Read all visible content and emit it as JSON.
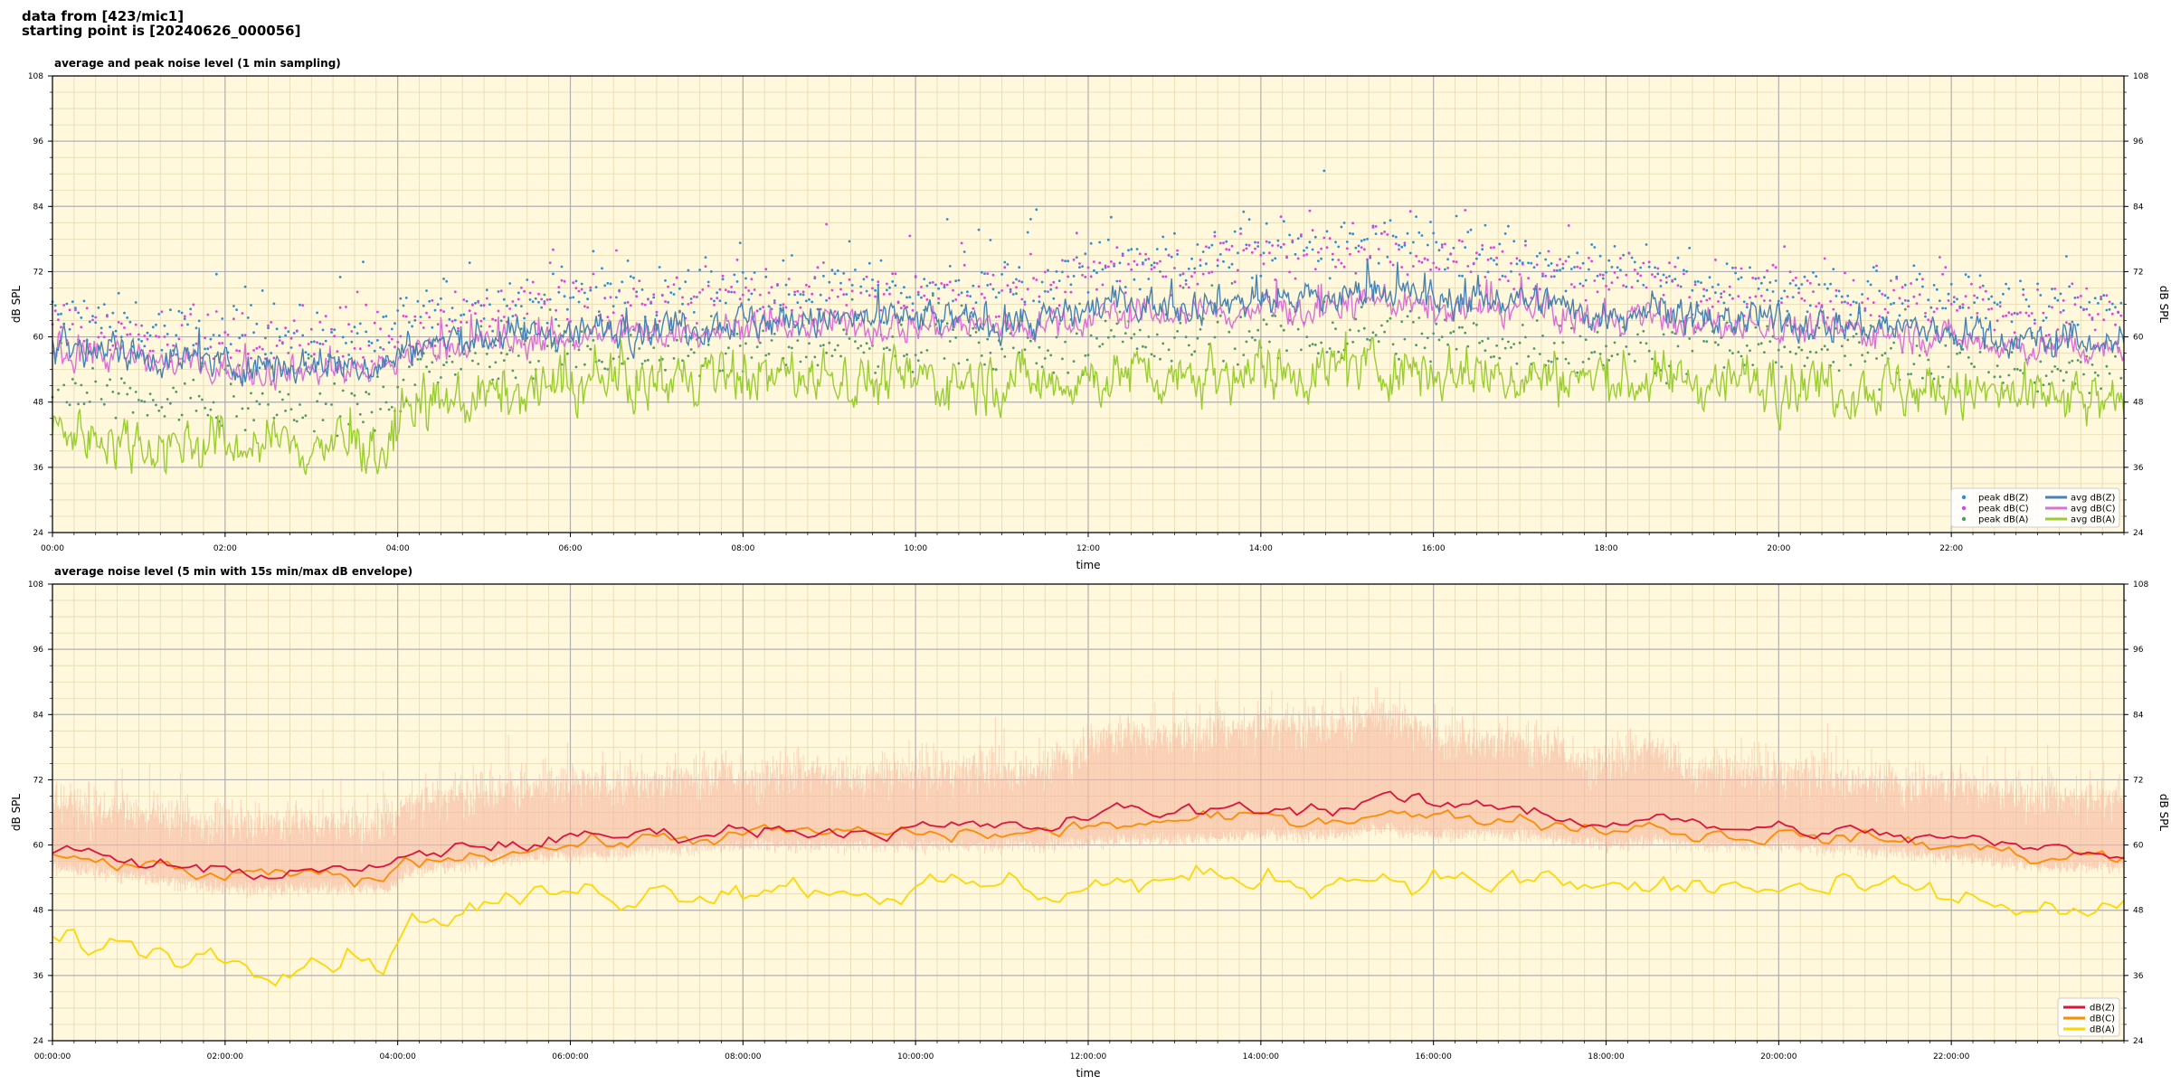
{
  "header": {
    "line1": "data from [423/mic1]",
    "line2": "starting point is [20240626_000056]"
  },
  "colors": {
    "background": "#fff8dc",
    "peak_z": "#2b8fd6",
    "peak_c": "#e040e0",
    "peak_a": "#4f9a6a",
    "avg_z": "#4682b4",
    "avg_c": "#da70d6",
    "avg_a": "#9acd32",
    "env": "#f5b8a0",
    "line_z": "#dc143c",
    "line_c": "#ff8c00",
    "line_a": "#ffd700"
  },
  "chart_data": [
    {
      "type": "line",
      "title": "average and peak noise level (1 min sampling)",
      "xlabel": "time",
      "ylabel": "dB SPL",
      "ylim": [
        24,
        108
      ],
      "xlim_hours": [
        0,
        24
      ],
      "yticks": [
        "24",
        "36",
        "48",
        "60",
        "72",
        "84",
        "96",
        "108"
      ],
      "xticks": [
        "00:00",
        "02:00",
        "04:00",
        "06:00",
        "08:00",
        "10:00",
        "12:00",
        "14:00",
        "16:00",
        "18:00",
        "20:00",
        "22:00"
      ],
      "grid": true,
      "legend_position": "lower-right",
      "legend": [
        "peak dB(Z)",
        "peak dB(C)",
        "peak dB(A)",
        "avg dB(Z)",
        "avg dB(C)",
        "avg dB(A)"
      ],
      "sampling_minutes": 1,
      "profile_hours": [
        0,
        0.5,
        1,
        2,
        3,
        3.9,
        4.1,
        5,
        6,
        8,
        10,
        11.5,
        12.2,
        13,
        14,
        15,
        15.3,
        16,
        17,
        18,
        18.6,
        19,
        20,
        21,
        22,
        23,
        24
      ],
      "series": [
        {
          "name": "avg dB(Z)",
          "values": [
            59,
            58,
            57,
            55,
            55,
            55,
            58,
            60,
            61,
            63,
            63,
            63,
            66,
            66,
            67,
            67,
            69,
            67,
            67,
            64,
            66,
            63,
            63,
            62,
            61,
            59,
            59
          ]
        },
        {
          "name": "avg dB(C)",
          "values": [
            58,
            57,
            56,
            54,
            54,
            54,
            57,
            59,
            60,
            62,
            62,
            62,
            64,
            64,
            65,
            65,
            67,
            65,
            65,
            63,
            64,
            62,
            62,
            61,
            60,
            58,
            58
          ]
        },
        {
          "name": "avg dB(A)",
          "values": [
            43,
            42,
            41,
            40,
            40,
            40,
            46,
            49,
            51,
            53,
            52,
            52,
            53,
            53,
            54,
            54,
            55,
            54,
            53,
            52,
            52,
            52,
            52,
            51,
            50,
            48,
            47
          ]
        },
        {
          "name": "peak dB(Z)",
          "values": [
            64,
            63,
            62,
            60,
            60,
            60,
            64,
            66,
            67,
            69,
            69,
            70,
            74,
            74,
            76,
            76,
            78,
            75,
            74,
            71,
            73,
            70,
            69,
            68,
            67,
            65,
            65
          ]
        },
        {
          "name": "peak dB(C)",
          "values": [
            63,
            62,
            61,
            59,
            59,
            59,
            63,
            65,
            66,
            68,
            68,
            69,
            73,
            73,
            75,
            75,
            77,
            74,
            73,
            70,
            72,
            69,
            68,
            67,
            66,
            64,
            64
          ]
        },
        {
          "name": "peak dB(A)",
          "values": [
            50,
            49,
            48,
            47,
            47,
            47,
            53,
            55,
            57,
            58,
            58,
            58,
            59,
            59,
            60,
            60,
            61,
            60,
            59,
            58,
            58,
            58,
            58,
            57,
            56,
            54,
            53
          ]
        }
      ]
    },
    {
      "type": "line",
      "title": "average noise level (5 min with 15s min/max dB envelope)",
      "xlabel": "time",
      "ylabel": "dB SPL",
      "ylim": [
        24,
        108
      ],
      "xlim_hours": [
        0,
        24
      ],
      "yticks": [
        "24",
        "36",
        "48",
        "60",
        "72",
        "84",
        "96",
        "108"
      ],
      "xticks": [
        "00:00:00",
        "02:00:00",
        "04:00:00",
        "06:00:00",
        "08:00:00",
        "10:00:00",
        "12:00:00",
        "14:00:00",
        "16:00:00",
        "18:00:00",
        "20:00:00",
        "22:00:00"
      ],
      "grid": true,
      "legend_position": "lower-right",
      "legend": [
        "dB(Z)",
        "dB(C)",
        "dB(A)"
      ],
      "sampling_minutes": 5,
      "profile_hours": [
        0,
        0.5,
        1,
        2,
        3,
        3.9,
        4.1,
        5,
        6,
        8,
        10,
        11.5,
        12.2,
        13,
        14,
        15,
        15.3,
        16,
        17,
        18,
        18.6,
        19,
        20,
        21,
        22,
        23,
        24
      ],
      "series": [
        {
          "name": "dB(Z)",
          "values": [
            59,
            58,
            57,
            55,
            55,
            55,
            58,
            60,
            61,
            63,
            63,
            63,
            66,
            66,
            67,
            67,
            69,
            67,
            67,
            64,
            66,
            63,
            63,
            62,
            61,
            59,
            59
          ]
        },
        {
          "name": "dB(C)",
          "values": [
            58,
            57,
            56,
            54,
            54,
            54,
            57,
            59,
            60,
            62,
            62,
            62,
            64,
            64,
            65,
            65,
            67,
            65,
            65,
            63,
            64,
            62,
            62,
            61,
            60,
            58,
            58
          ]
        },
        {
          "name": "dB(A)",
          "values": [
            43,
            42,
            41,
            40,
            40,
            40,
            46,
            49,
            51,
            53,
            52,
            52,
            53,
            53,
            54,
            54,
            55,
            54,
            53,
            52,
            52,
            52,
            52,
            51,
            50,
            48,
            47
          ]
        }
      ],
      "envelope": {
        "min_values": [
          56,
          55,
          54,
          52,
          52,
          52,
          55,
          57,
          58,
          60,
          60,
          60,
          61,
          61,
          62,
          62,
          63,
          62,
          62,
          60,
          61,
          60,
          60,
          59,
          58,
          56,
          56
        ],
        "max_values": [
          68,
          67,
          66,
          64,
          64,
          64,
          68,
          70,
          71,
          73,
          73,
          74,
          80,
          80,
          82,
          82,
          84,
          80,
          79,
          75,
          78,
          74,
          73,
          72,
          71,
          69,
          69
        ]
      }
    }
  ]
}
